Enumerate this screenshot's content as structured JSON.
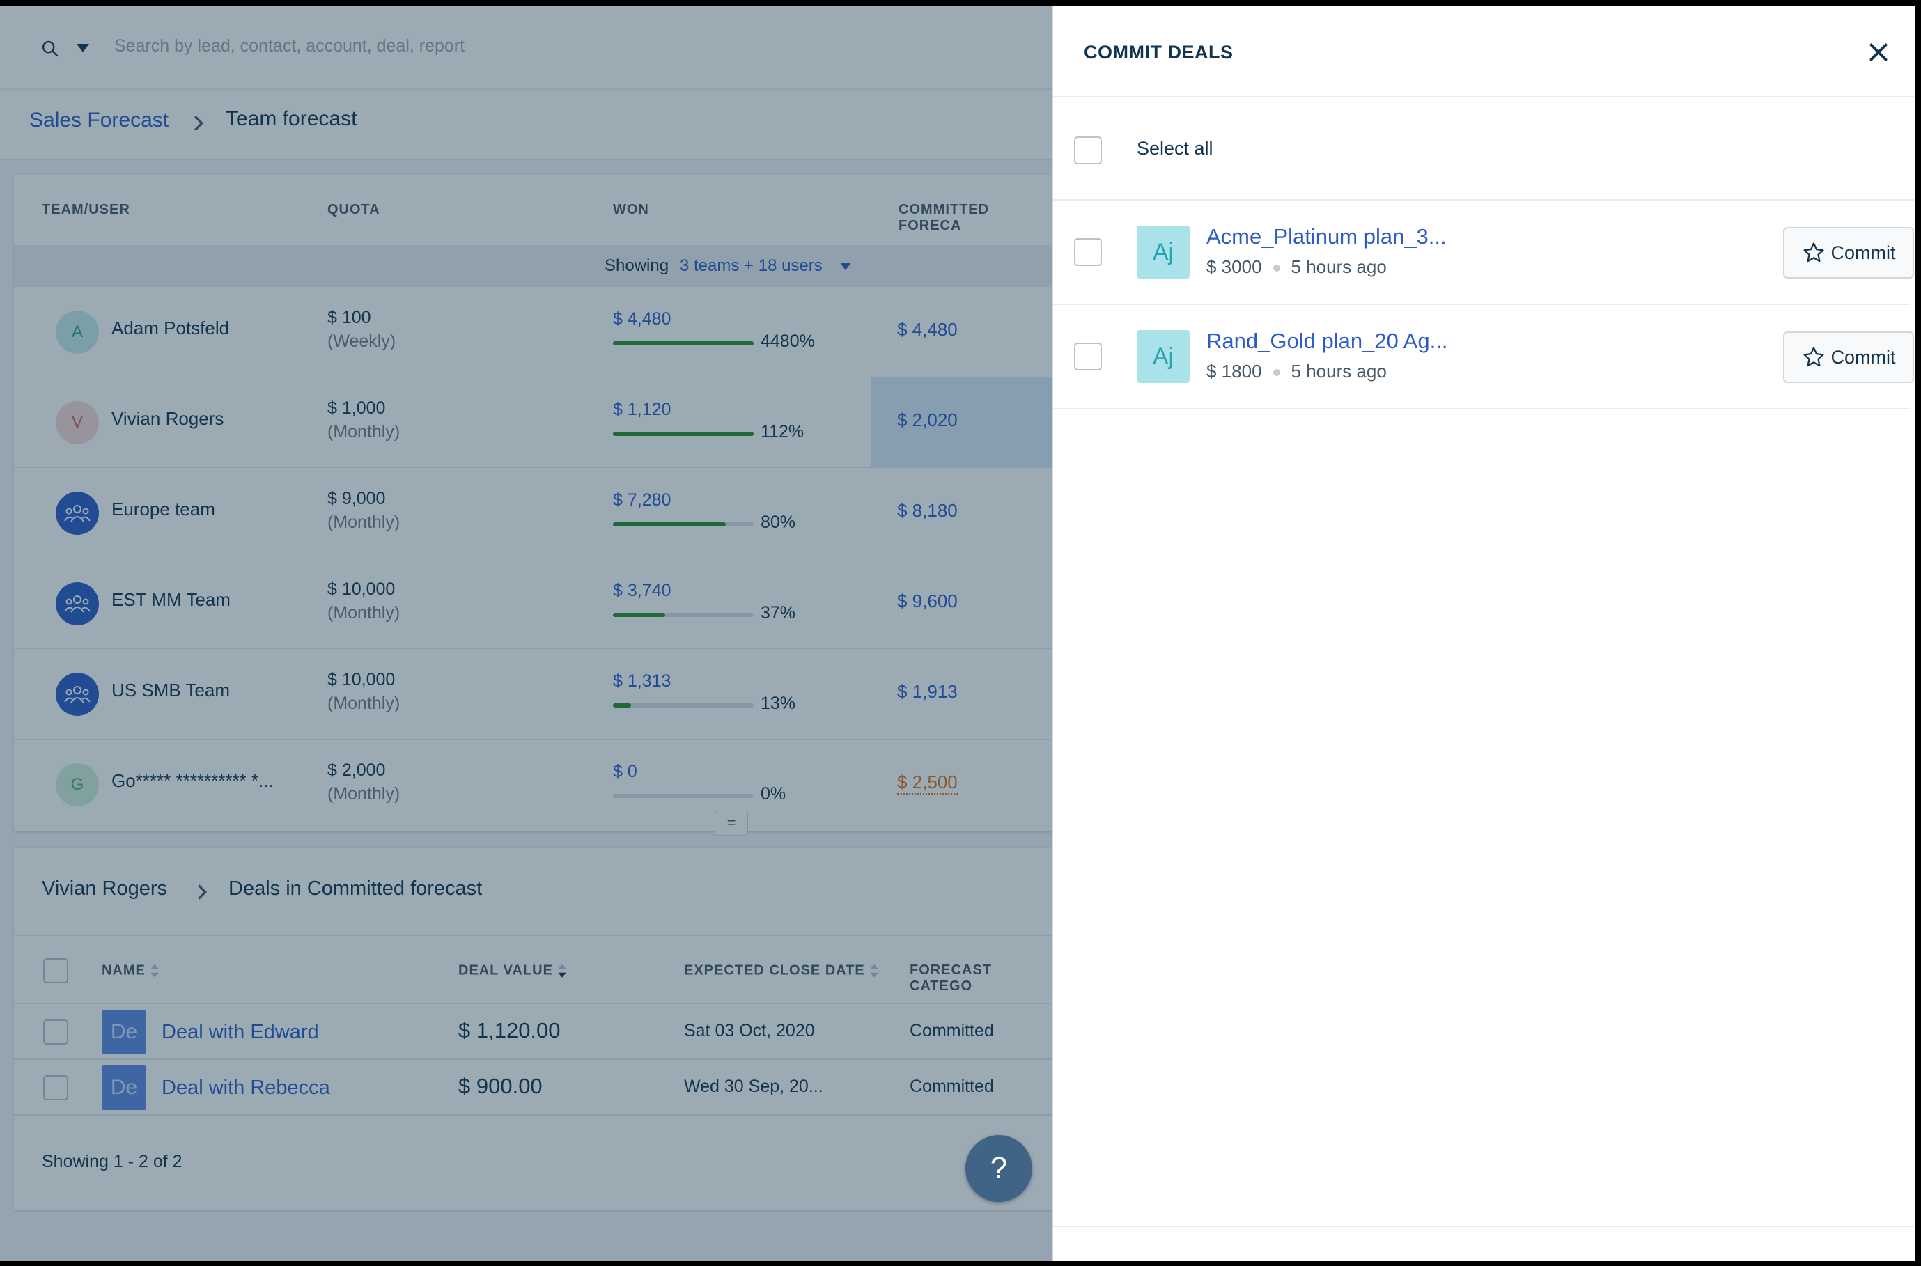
{
  "search": {
    "placeholder": "Search by lead, contact, account, deal, report"
  },
  "breadcrumb": {
    "root": "Sales Forecast",
    "current": "Team forecast"
  },
  "forecast_table": {
    "headers": {
      "team_user": "TEAM/USER",
      "quota": "QUOTA",
      "won": "WON",
      "committed": "COMMITTED FORECA"
    },
    "showing_prefix": "Showing",
    "showing_link": "3 teams + 18 users",
    "rows": [
      {
        "initial": "A",
        "name": "Adam Potsfeld",
        "quota": "$ 100",
        "period": "(Weekly)",
        "won": "$ 4,480",
        "won_fraction": 1.0,
        "pct": "4480%",
        "committed": "$ 4,480"
      },
      {
        "initial": "V",
        "name": "Vivian Rogers",
        "quota": "$ 1,000",
        "period": "(Monthly)",
        "won": "$ 1,120",
        "won_fraction": 1.0,
        "pct": "112%",
        "committed": "$ 2,020"
      },
      {
        "initial": "",
        "name": "Europe team",
        "quota": "$ 9,000",
        "period": "(Monthly)",
        "won": "$ 7,280",
        "won_fraction": 0.8,
        "pct": "80%",
        "committed": "$ 8,180"
      },
      {
        "initial": "",
        "name": "EST MM Team",
        "quota": "$ 10,000",
        "period": "(Monthly)",
        "won": "$ 3,740",
        "won_fraction": 0.37,
        "pct": "37%",
        "committed": "$ 9,600"
      },
      {
        "initial": "",
        "name": "US SMB Team",
        "quota": "$ 10,000",
        "period": "(Monthly)",
        "won": "$ 1,313",
        "won_fraction": 0.13,
        "pct": "13%",
        "committed": "$ 1,913"
      },
      {
        "initial": "G",
        "name": "Go***** ********** *...",
        "quota": "$ 2,000",
        "period": "(Monthly)",
        "won": "$ 0",
        "won_fraction": 0,
        "pct": "0%",
        "committed": "$ 2,500"
      }
    ]
  },
  "resize_handle": "=",
  "deals_panel": {
    "owner": "Vivian Rogers",
    "title": "Deals in Committed forecast",
    "headers": {
      "name": "NAME",
      "deal_value": "DEAL VALUE",
      "close_date": "EXPECTED CLOSE DATE",
      "category": "FORECAST CATEGO"
    },
    "rows": [
      {
        "avatar": "De",
        "name": "Deal with Edward",
        "value": "$ 1,120.00",
        "date": "Sat 03 Oct, 2020",
        "category": "Committed"
      },
      {
        "avatar": "De",
        "name": "Deal with Rebecca",
        "value": "$ 900.00",
        "date": "Wed 30 Sep, 20...",
        "category": "Committed"
      }
    ],
    "footer": "Showing 1 - 2 of 2"
  },
  "help_button": "?",
  "drawer": {
    "title": "COMMIT DEALS",
    "select_all": "Select all",
    "items": [
      {
        "avatar": "Aj",
        "name": "Acme_Platinum plan_3...",
        "amount": "$ 3000",
        "time": "5 hours ago",
        "button": "Commit"
      },
      {
        "avatar": "Aj",
        "name": "Rand_Gold plan_20 Ag...",
        "amount": "$ 1800",
        "time": "5 hours ago",
        "button": "Commit"
      }
    ]
  },
  "colors": {
    "link": "#2c5cc5",
    "progress": "#2a8d2a",
    "warning": "#e0751b",
    "team_avatar": "#2c5cc5"
  }
}
